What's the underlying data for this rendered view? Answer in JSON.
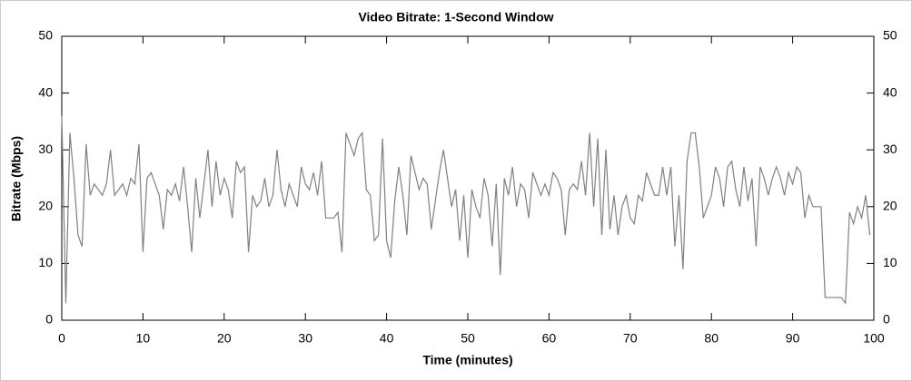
{
  "chart_data": {
    "type": "line",
    "title": "Video Bitrate: 1-Second Window",
    "x_label": "Time (minutes)",
    "y_label": "Bitrate (Mbps)",
    "x": [
      0,
      0.5,
      1,
      1.5,
      2,
      2.5,
      3,
      3.5,
      4,
      4.5,
      5,
      5.5,
      6,
      6.5,
      7,
      7.5,
      8,
      8.5,
      9,
      9.5,
      10,
      10.5,
      11,
      11.5,
      12,
      12.5,
      13,
      13.5,
      14,
      14.5,
      15,
      15.5,
      16,
      16.5,
      17,
      17.5,
      18,
      18.5,
      19,
      19.5,
      20,
      20.5,
      21,
      21.5,
      22,
      22.5,
      23,
      23.5,
      24,
      24.5,
      25,
      25.5,
      26,
      26.5,
      27,
      27.5,
      28,
      28.5,
      29,
      29.5,
      30,
      30.5,
      31,
      31.5,
      32,
      32.5,
      33,
      33.5,
      34,
      34.5,
      35,
      35.5,
      36,
      36.5,
      37,
      37.5,
      38,
      38.5,
      39,
      39.5,
      40,
      40.5,
      41,
      41.5,
      42,
      42.5,
      43,
      43.5,
      44,
      44.5,
      45,
      45.5,
      46,
      46.5,
      47,
      47.5,
      48,
      48.5,
      49,
      49.5,
      50,
      50.5,
      51,
      51.5,
      52,
      52.5,
      53,
      53.5,
      54,
      54.5,
      55,
      55.5,
      56,
      56.5,
      57,
      57.5,
      58,
      58.5,
      59,
      59.5,
      60,
      60.5,
      61,
      61.5,
      62,
      62.5,
      63,
      63.5,
      64,
      64.5,
      65,
      65.5,
      66,
      66.5,
      67,
      67.5,
      68,
      68.5,
      69,
      69.5,
      70,
      70.5,
      71,
      71.5,
      72,
      72.5,
      73,
      73.5,
      74,
      74.5,
      75,
      75.5,
      76,
      76.5,
      77,
      77.5,
      78,
      78.5,
      79,
      79.5,
      80,
      80.5,
      81,
      81.5,
      82,
      82.5,
      83,
      83.5,
      84,
      84.5,
      85,
      85.5,
      86,
      86.5,
      87,
      87.5,
      88,
      88.5,
      89,
      89.5,
      90,
      90.5,
      91,
      91.5,
      92,
      92.5,
      93,
      93.5,
      94,
      94.5,
      95,
      95.5,
      96,
      96.5,
      97,
      97.5,
      98,
      98.5,
      99,
      99.5
    ],
    "series": [
      {
        "name": "Bitrate",
        "color": "#808080",
        "values": [
          36,
          3,
          33,
          25,
          15,
          13,
          31,
          22,
          24,
          23,
          22,
          24,
          30,
          22,
          23,
          24,
          22,
          25,
          24,
          31,
          12,
          25,
          26,
          24,
          22,
          16,
          23,
          22,
          24,
          21,
          27,
          20,
          12,
          25,
          18,
          24,
          30,
          20,
          28,
          22,
          25,
          23,
          18,
          28,
          26,
          27,
          12,
          22,
          20,
          21,
          25,
          20,
          22,
          30,
          23,
          20,
          24,
          22,
          20,
          27,
          24,
          23,
          26,
          22,
          28,
          18,
          18,
          18,
          19,
          12,
          33,
          31,
          29,
          32,
          33,
          23,
          22,
          14,
          15,
          32,
          14,
          11,
          21,
          27,
          22,
          15,
          29,
          26,
          23,
          25,
          24,
          16,
          21,
          26,
          30,
          25,
          20,
          23,
          14,
          22,
          11,
          23,
          20,
          18,
          25,
          22,
          13,
          24,
          8,
          25,
          22,
          27,
          20,
          24,
          23,
          18,
          26,
          24,
          22,
          24,
          22,
          26,
          25,
          23,
          15,
          23,
          24,
          23,
          28,
          22,
          33,
          20,
          32,
          15,
          30,
          16,
          22,
          15,
          20,
          22,
          18,
          17,
          22,
          21,
          26,
          24,
          22,
          22,
          27,
          22,
          27,
          13,
          22,
          9,
          28,
          33,
          33,
          27,
          18,
          20,
          22,
          27,
          25,
          20,
          27,
          28,
          23,
          20,
          27,
          21,
          25,
          13,
          27,
          25,
          22,
          25,
          27,
          25,
          22,
          26,
          24,
          27,
          26,
          18,
          22,
          20,
          20,
          20,
          4,
          4,
          4,
          4,
          4,
          3,
          19,
          17,
          20,
          18,
          22,
          15
        ]
      }
    ],
    "xlim": [
      0,
      100
    ],
    "xticks": [
      0,
      10,
      20,
      30,
      40,
      50,
      60,
      70,
      80,
      90,
      100
    ],
    "ylim": [
      0,
      50
    ],
    "yticks": [
      0,
      10,
      20,
      30,
      40,
      50
    ],
    "y2lim": [
      0,
      50
    ],
    "y2ticks": [
      0,
      10,
      20,
      30,
      40,
      50
    ]
  }
}
